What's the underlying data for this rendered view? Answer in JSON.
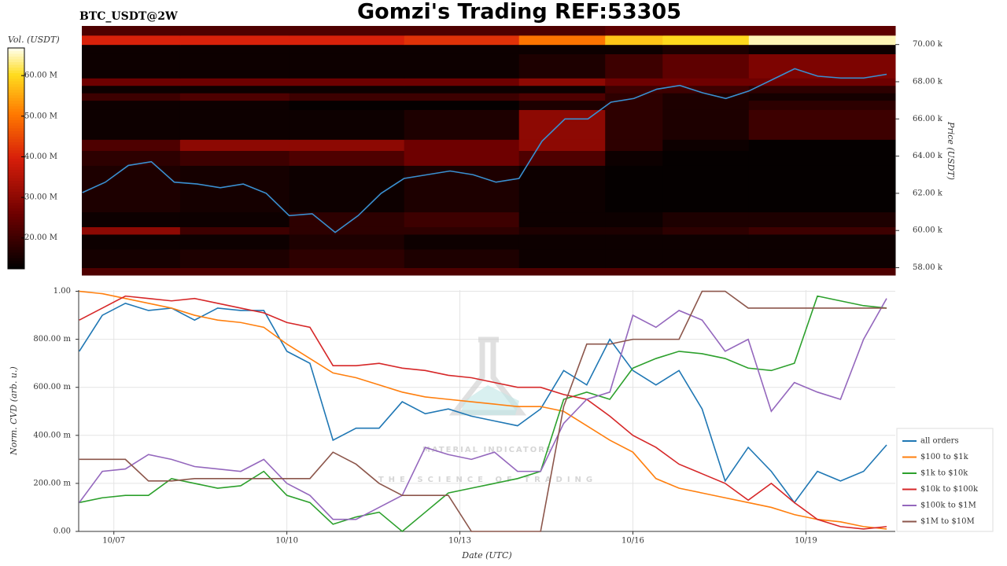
{
  "chart_data": [
    {
      "type": "heatmap",
      "title": "Gomzi's Trading REF:53305",
      "subtitle": "BTC_USDT@2W",
      "ylabel": "Price (USDT)",
      "xlim": [
        -0.61,
        13.55
      ],
      "ylim": [
        57600,
        71000
      ],
      "yticks": [
        {
          "value": 58000,
          "label": "58.00 k"
        },
        {
          "value": 60000,
          "label": "60.00 k"
        },
        {
          "value": 62000,
          "label": "62.00 k"
        },
        {
          "value": 64000,
          "label": "64.00 k"
        },
        {
          "value": 66000,
          "label": "66.00 k"
        },
        {
          "value": 68000,
          "label": "68.00 k"
        },
        {
          "value": 70000,
          "label": "70.00 k"
        }
      ],
      "x_bins": [
        -0.61,
        1.1,
        3,
        5,
        7,
        8.5,
        9.5,
        11,
        13.55
      ],
      "y_bins": [
        57600,
        58000,
        59000,
        59800,
        60200,
        61000,
        63500,
        64300,
        64900,
        66500,
        67000,
        67400,
        67800,
        68200,
        69500,
        70000,
        70500,
        71000
      ],
      "z": [
        [
          22,
          22,
          22,
          22,
          22,
          22,
          22,
          22
        ],
        [
          15,
          16,
          18,
          16,
          14,
          14,
          14,
          14
        ],
        [
          14,
          14,
          16,
          14,
          14,
          14,
          14,
          14
        ],
        [
          30,
          20,
          18,
          18,
          16,
          16,
          18,
          20
        ],
        [
          14,
          14,
          18,
          20,
          14,
          14,
          16,
          16
        ],
        [
          16,
          15,
          14,
          16,
          14,
          13,
          13,
          13
        ],
        [
          18,
          20,
          22,
          26,
          22,
          14,
          13,
          13
        ],
        [
          22,
          30,
          30,
          26,
          30,
          18,
          14,
          13
        ],
        [
          14,
          14,
          14,
          16,
          30,
          18,
          16,
          20
        ],
        [
          14,
          14,
          13,
          13,
          16,
          18,
          16,
          18
        ],
        [
          20,
          22,
          20,
          20,
          22,
          18,
          16,
          15
        ],
        [
          14,
          14,
          14,
          14,
          14,
          20,
          20,
          18
        ],
        [
          26,
          26,
          26,
          26,
          30,
          26,
          26,
          26
        ],
        [
          14,
          14,
          14,
          14,
          16,
          20,
          24,
          28
        ],
        [
          14,
          14,
          14,
          14,
          14,
          14,
          16,
          14
        ],
        [
          40,
          40,
          40,
          42,
          50,
          58,
          60,
          65
        ],
        [
          22,
          22,
          22,
          22,
          22,
          24,
          24,
          24
        ]
      ],
      "colorbar": {
        "label": "Vol. (USDT)",
        "lim": [
          12.4,
          66.8
        ],
        "ticks": [
          {
            "value": 20,
            "label": "20.00 M"
          },
          {
            "value": 30,
            "label": "30.00 M"
          },
          {
            "value": 40,
            "label": "40.00 M"
          },
          {
            "value": 50,
            "label": "50.00 M"
          },
          {
            "value": 60,
            "label": "60.00 M"
          }
        ]
      },
      "x": [
        -0.6,
        -0.2,
        0.2,
        0.6,
        1.0,
        1.4,
        1.8,
        2.2,
        2.6,
        3.0,
        3.4,
        3.8,
        4.2,
        4.6,
        5.0,
        5.4,
        5.8,
        6.2,
        6.6,
        7.0,
        7.4,
        7.8,
        8.2,
        8.6,
        9.0,
        9.4,
        9.8,
        10.2,
        10.6,
        11.0,
        11.4,
        11.8,
        12.2,
        12.6,
        13.0,
        13.4
      ],
      "price": {
        "color": "#3a8fd0",
        "values": [
          62040,
          62600,
          63500,
          63700,
          62600,
          62500,
          62300,
          62500,
          62000,
          60800,
          60900,
          59900,
          60800,
          62000,
          62800,
          63000,
          63200,
          63000,
          62600,
          62800,
          64800,
          66000,
          66000,
          66900,
          67100,
          67600,
          67800,
          67400,
          67100,
          67500,
          68100,
          68700,
          68300,
          68200,
          68200,
          68400
        ]
      }
    },
    {
      "type": "line",
      "xlabel": "Date (UTC)",
      "ylabel": "Norm. CVD (arb. u.)",
      "xlim": [
        -0.61,
        13.55
      ],
      "ylim": [
        0,
        1.005
      ],
      "xticks": [
        {
          "value": 0,
          "label": "10/07"
        },
        {
          "value": 3,
          "label": "10/10"
        },
        {
          "value": 6,
          "label": "10/13"
        },
        {
          "value": 9,
          "label": "10/16"
        },
        {
          "value": 12,
          "label": "10/19"
        }
      ],
      "yticks": [
        {
          "value": 0,
          "label": "0.00"
        },
        {
          "value": 0.2,
          "label": "200.00 m"
        },
        {
          "value": 0.4,
          "label": "400.00 m"
        },
        {
          "value": 0.6,
          "label": "600.00 m"
        },
        {
          "value": 0.8,
          "label": "800.00 m"
        },
        {
          "value": 1,
          "label": "1.00"
        }
      ],
      "grid": true,
      "legend": "lower right",
      "watermark": [
        "MATERIAL INDICATORS",
        "THE SCIENCE OF TRADING"
      ],
      "x": [
        -0.6,
        -0.2,
        0.2,
        0.6,
        1.0,
        1.4,
        1.8,
        2.2,
        2.6,
        3.0,
        3.4,
        3.8,
        4.2,
        4.6,
        5.0,
        5.4,
        5.8,
        6.2,
        6.6,
        7.0,
        7.4,
        7.8,
        8.2,
        8.6,
        9.0,
        9.4,
        9.8,
        10.2,
        10.6,
        11.0,
        11.4,
        11.8,
        12.2,
        12.6,
        13.0,
        13.4
      ],
      "series": [
        {
          "name": "all orders",
          "color": "#1f77b4",
          "values": [
            0.75,
            0.9,
            0.95,
            0.92,
            0.93,
            0.88,
            0.93,
            0.92,
            0.92,
            0.75,
            0.7,
            0.38,
            0.43,
            0.43,
            0.54,
            0.49,
            0.51,
            0.48,
            0.46,
            0.44,
            0.51,
            0.67,
            0.61,
            0.8,
            0.67,
            0.61,
            0.67,
            0.51,
            0.21,
            0.35,
            0.25,
            0.12,
            0.25,
            0.21,
            0.25,
            0.36
          ]
        },
        {
          "name": "$100 to $1k",
          "color": "#ff7f0e",
          "values": [
            1.0,
            0.99,
            0.97,
            0.95,
            0.93,
            0.9,
            0.88,
            0.87,
            0.85,
            0.78,
            0.72,
            0.66,
            0.64,
            0.61,
            0.58,
            0.56,
            0.55,
            0.54,
            0.53,
            0.52,
            0.52,
            0.5,
            0.44,
            0.38,
            0.33,
            0.22,
            0.18,
            0.16,
            0.14,
            0.12,
            0.1,
            0.07,
            0.05,
            0.04,
            0.02,
            0.01
          ]
        },
        {
          "name": "$1k to $10k",
          "color": "#2ca02c",
          "values": [
            0.12,
            0.14,
            0.15,
            0.15,
            0.22,
            0.2,
            0.18,
            0.19,
            0.25,
            0.15,
            0.12,
            0.03,
            0.06,
            0.08,
            0.0,
            0.08,
            0.16,
            0.18,
            0.2,
            0.22,
            0.25,
            0.55,
            0.58,
            0.55,
            0.68,
            0.72,
            0.75,
            0.74,
            0.72,
            0.68,
            0.67,
            0.7,
            0.98,
            0.96,
            0.94,
            0.93
          ]
        },
        {
          "name": "$10k to $100k",
          "color": "#d62728",
          "values": [
            0.88,
            0.93,
            0.98,
            0.97,
            0.96,
            0.97,
            0.95,
            0.93,
            0.91,
            0.87,
            0.85,
            0.69,
            0.69,
            0.7,
            0.68,
            0.67,
            0.65,
            0.64,
            0.62,
            0.6,
            0.6,
            0.57,
            0.55,
            0.48,
            0.4,
            0.35,
            0.28,
            0.24,
            0.2,
            0.13,
            0.2,
            0.12,
            0.05,
            0.02,
            0.01,
            0.02
          ]
        },
        {
          "name": "$100k to $1M",
          "color": "#9467bd",
          "values": [
            0.12,
            0.25,
            0.26,
            0.32,
            0.3,
            0.27,
            0.26,
            0.25,
            0.3,
            0.2,
            0.15,
            0.05,
            0.05,
            0.1,
            0.15,
            0.35,
            0.32,
            0.3,
            0.33,
            0.25,
            0.25,
            0.45,
            0.55,
            0.58,
            0.9,
            0.85,
            0.92,
            0.88,
            0.75,
            0.8,
            0.5,
            0.62,
            0.58,
            0.55,
            0.8,
            0.97
          ]
        },
        {
          "name": "$1M to $10M",
          "color": "#8c564b",
          "values": [
            0.3,
            0.3,
            0.3,
            0.21,
            0.21,
            0.22,
            0.22,
            0.22,
            0.22,
            0.22,
            0.22,
            0.33,
            0.28,
            0.2,
            0.15,
            0.15,
            0.15,
            0.0,
            0.0,
            0.0,
            0.0,
            0.52,
            0.78,
            0.78,
            0.8,
            0.8,
            0.8,
            1.0,
            1.0,
            0.93,
            0.93,
            0.93,
            0.93,
            0.93,
            0.93,
            0.93
          ]
        }
      ]
    }
  ]
}
